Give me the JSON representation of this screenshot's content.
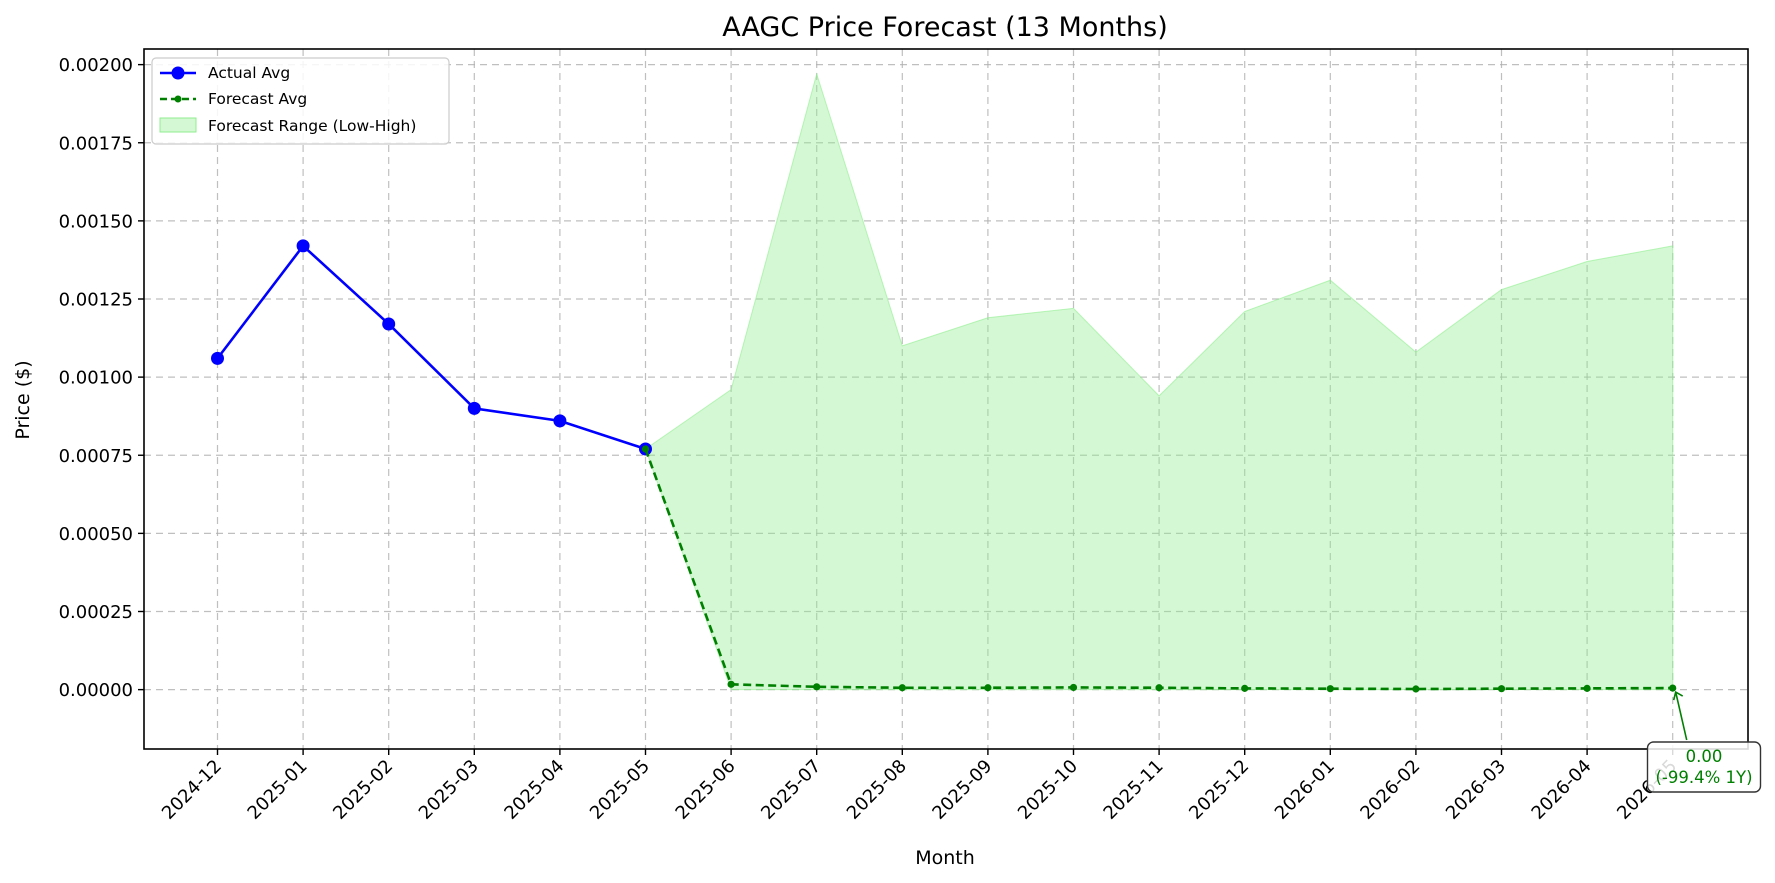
{
  "chart_data": {
    "type": "line",
    "title": "AAGC Price Forecast (13 Months)",
    "xlabel": "Month",
    "ylabel": "Price ($)",
    "categories": [
      "2024-12",
      "2025-01",
      "2025-02",
      "2025-03",
      "2025-04",
      "2025-05",
      "2025-06",
      "2025-07",
      "2025-08",
      "2025-09",
      "2025-10",
      "2025-11",
      "2025-12",
      "2026-01",
      "2026-02",
      "2026-03",
      "2026-04",
      "2026-05"
    ],
    "ylim": [
      -0.00019,
      0.00205
    ],
    "yticks": [
      0.0,
      0.00025,
      0.0005,
      0.00075,
      0.001,
      0.00125,
      0.0015,
      0.00175,
      0.002
    ],
    "ytick_labels": [
      "0.00000",
      "0.00025",
      "0.00050",
      "0.00075",
      "0.00100",
      "0.00125",
      "0.00150",
      "0.00175",
      "0.00200"
    ],
    "grid": true,
    "legend_position": "upper-left",
    "series": [
      {
        "name": "Actual Avg",
        "style": "solid-line-circle-markers",
        "color": "#0000ff",
        "x": [
          "2024-12",
          "2025-01",
          "2025-02",
          "2025-03",
          "2025-04",
          "2025-05"
        ],
        "values": [
          0.00106,
          0.00142,
          0.00117,
          0.0009,
          0.00086,
          0.00077
        ]
      },
      {
        "name": "Forecast Avg",
        "style": "dashed-line-dot-markers",
        "color": "#008000",
        "x": [
          "2025-05",
          "2025-06",
          "2025-07",
          "2025-08",
          "2025-09",
          "2025-10",
          "2025-11",
          "2025-12",
          "2026-01",
          "2026-02",
          "2026-03",
          "2026-04",
          "2026-05"
        ],
        "values": [
          0.00077,
          1.7e-05,
          9e-06,
          6e-06,
          6e-06,
          7e-06,
          6e-06,
          4e-06,
          3e-06,
          2e-06,
          3e-06,
          4e-06,
          5e-06
        ]
      },
      {
        "name": "Forecast Range (Low-High)",
        "style": "filled-area",
        "color": "#90ee90",
        "x": [
          "2025-05",
          "2025-06",
          "2025-07",
          "2025-08",
          "2025-09",
          "2025-10",
          "2025-11",
          "2025-12",
          "2026-01",
          "2026-02",
          "2026-03",
          "2026-04",
          "2026-05"
        ],
        "low": [
          0.00077,
          0.0,
          0.0,
          0.0,
          0.0,
          0.0,
          0.0,
          0.0,
          0.0,
          0.0,
          0.0,
          0.0,
          0.0
        ],
        "high": [
          0.00077,
          0.00096,
          0.00197,
          0.0011,
          0.00119,
          0.00122,
          0.00094,
          0.00121,
          0.00131,
          0.00108,
          0.00128,
          0.00137,
          0.00142
        ]
      }
    ],
    "annotation": {
      "x": "2026-05",
      "y": 5e-06,
      "lines": [
        "0.00",
        "(-99.4% 1Y)"
      ],
      "color": "#008000"
    }
  }
}
